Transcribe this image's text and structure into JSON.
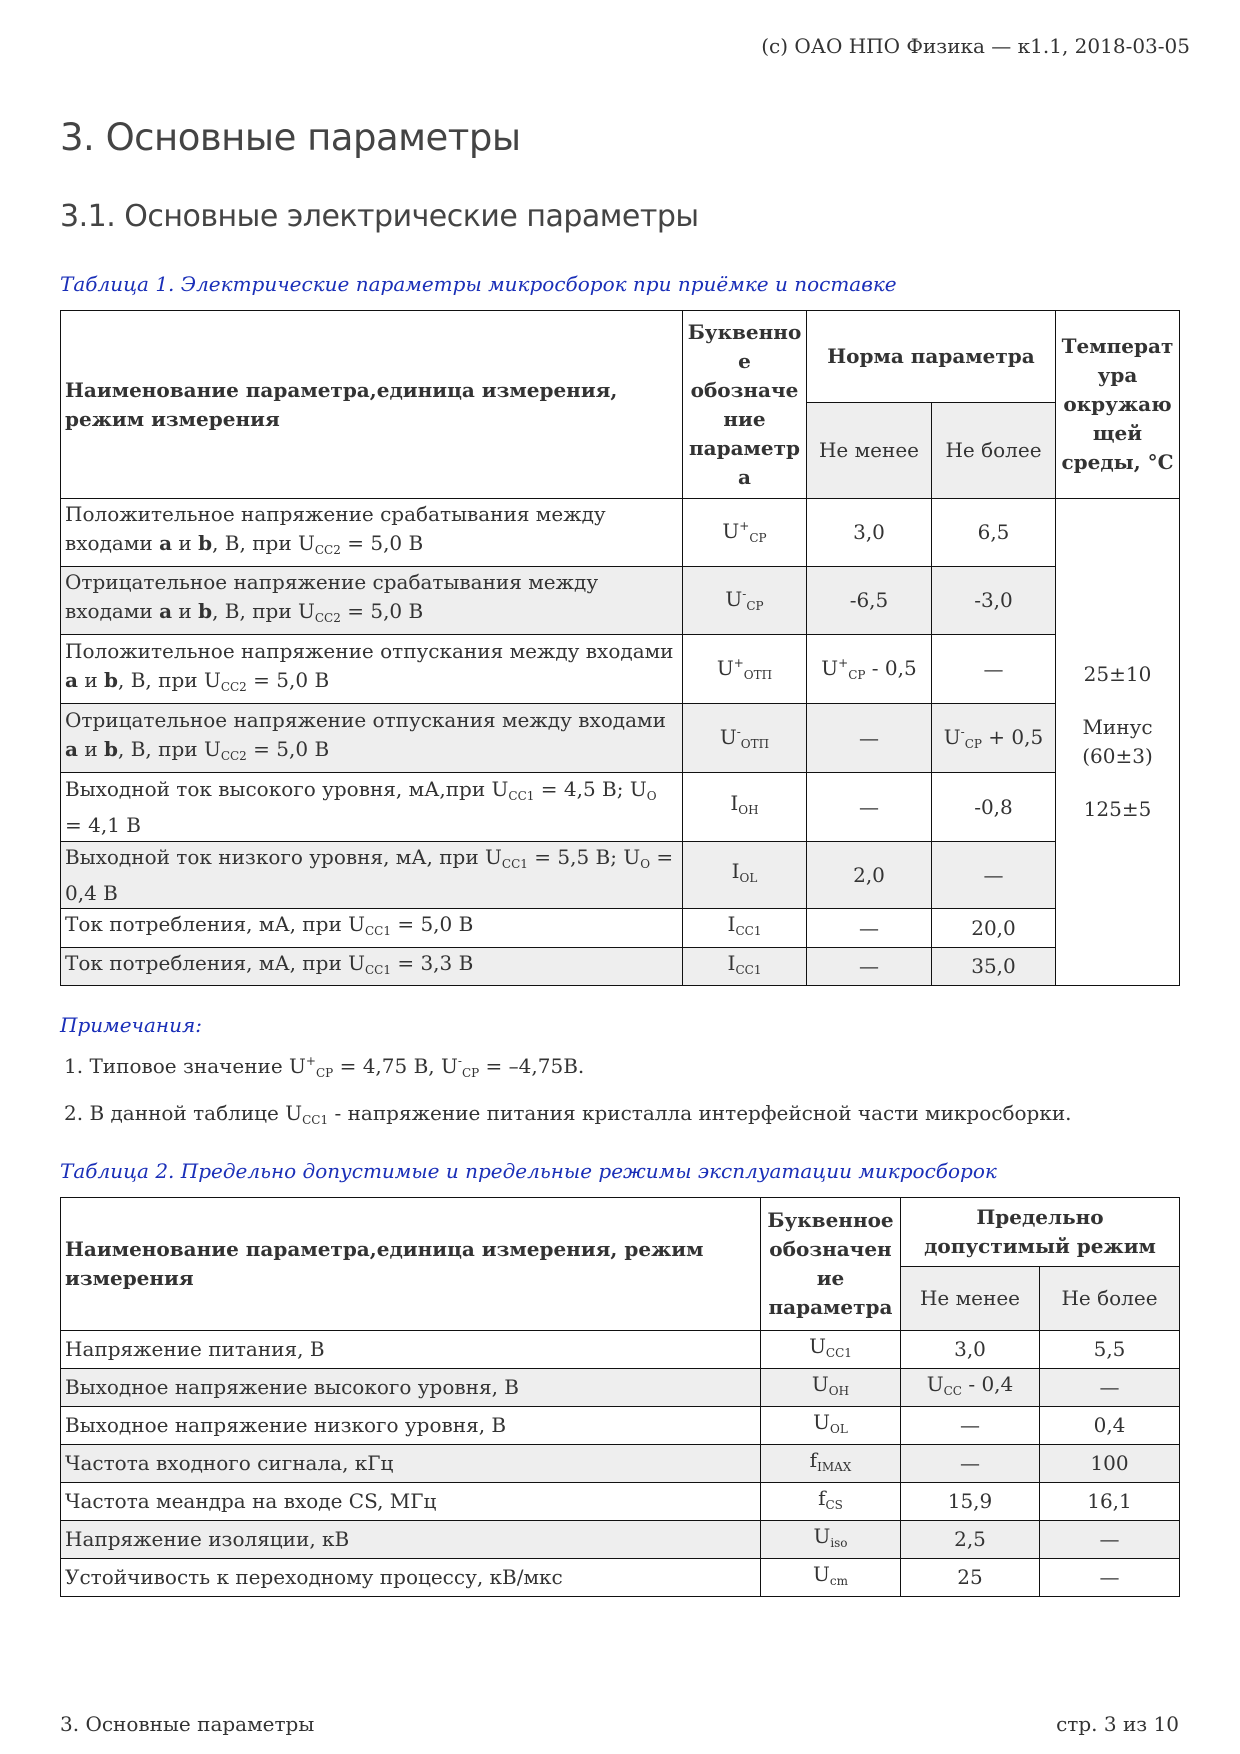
{
  "header": {
    "copyright": "(c) ОАО НПО Физика — к1.1, 2018-03-05"
  },
  "title": "3. Основные параметры",
  "subtitle": "3.1. Основные электрические параметры",
  "table1": {
    "caption": "Таблица 1. Электрические параметры микросборок при приёмке и поставке",
    "headers": {
      "name": "Наименование параметра,единица измерения, режим измерения",
      "symbol": "Буквенно е обозначе ние параметр а",
      "norm": "Норма параметра",
      "min": "Не менее",
      "max": "Не более",
      "temp": "Температ ура окружаю щей среды, °С"
    },
    "temperature": [
      "25±10",
      "Минус (60±3)",
      "125±5"
    ],
    "rows": [
      {
        "name": [
          {
            "t": "Положительное напряжение срабатывания между входами "
          },
          {
            "b": "a"
          },
          {
            "t": " и "
          },
          {
            "b": "b"
          },
          {
            "t": ", В, при U"
          },
          {
            "sub": "CC2"
          },
          {
            "t": " = 5,0 В"
          }
        ],
        "symbol": [
          {
            "t": "U"
          },
          {
            "sup": "+"
          },
          {
            "sub": "CP"
          }
        ],
        "min": [
          {
            "t": "3,0"
          }
        ],
        "max": [
          {
            "t": "6,5"
          }
        ]
      },
      {
        "name": [
          {
            "t": "Отрицательное напряжение срабатывания между входами "
          },
          {
            "b": "a"
          },
          {
            "t": " и "
          },
          {
            "b": "b"
          },
          {
            "t": ", В, при U"
          },
          {
            "sub": "CC2"
          },
          {
            "t": " = 5,0 В"
          }
        ],
        "symbol": [
          {
            "t": "U"
          },
          {
            "sup": "-"
          },
          {
            "sub": "CP"
          }
        ],
        "min": [
          {
            "t": "-6,5"
          }
        ],
        "max": [
          {
            "t": "-3,0"
          }
        ]
      },
      {
        "name": [
          {
            "t": "Положительное напряжение отпускания между входами "
          },
          {
            "b": "a"
          },
          {
            "t": " и "
          },
          {
            "b": "b"
          },
          {
            "t": ", В, при U"
          },
          {
            "sub": "CC2"
          },
          {
            "t": " = 5,0 В"
          }
        ],
        "symbol": [
          {
            "t": "U"
          },
          {
            "sup": "+"
          },
          {
            "sub": "ОТП"
          }
        ],
        "min": [
          {
            "t": "U"
          },
          {
            "sup": "+"
          },
          {
            "sub": "CP"
          },
          {
            "t": " - 0,5"
          }
        ],
        "max": [
          {
            "t": "—"
          }
        ]
      },
      {
        "name": [
          {
            "t": "Отрицательное напряжение отпускания между входами "
          },
          {
            "b": "a"
          },
          {
            "t": " и "
          },
          {
            "b": "b"
          },
          {
            "t": ", В, при U"
          },
          {
            "sub": "CC2"
          },
          {
            "t": " = 5,0 В"
          }
        ],
        "symbol": [
          {
            "t": "U"
          },
          {
            "sup": "-"
          },
          {
            "sub": "ОТП"
          }
        ],
        "min": [
          {
            "t": "—"
          }
        ],
        "max": [
          {
            "t": "U"
          },
          {
            "sup": "-"
          },
          {
            "sub": "CP"
          },
          {
            "t": " + 0,5"
          }
        ]
      },
      {
        "name": [
          {
            "t": "Выходной ток высокого уровня, мА,при U"
          },
          {
            "sub": "CC1"
          },
          {
            "t": " = 4,5 В; U"
          },
          {
            "sub": "O"
          },
          {
            "t": " = 4,1 В"
          }
        ],
        "symbol": [
          {
            "t": "I"
          },
          {
            "sub": "OH"
          }
        ],
        "min": [
          {
            "t": "—"
          }
        ],
        "max": [
          {
            "t": "-0,8"
          }
        ]
      },
      {
        "name": [
          {
            "t": "Выходной ток низкого уровня, мА, при U"
          },
          {
            "sub": "CC1"
          },
          {
            "t": " = 5,5 В; U"
          },
          {
            "sub": "O"
          },
          {
            "t": " = 0,4 В"
          }
        ],
        "symbol": [
          {
            "t": "I"
          },
          {
            "sub": "OL"
          }
        ],
        "min": [
          {
            "t": "2,0"
          }
        ],
        "max": [
          {
            "t": "—"
          }
        ]
      },
      {
        "name": [
          {
            "t": "Ток потребления, мА, при U"
          },
          {
            "sub": "CC1"
          },
          {
            "t": " = 5,0 В"
          }
        ],
        "symbol": [
          {
            "t": "I"
          },
          {
            "sub": "CC1"
          }
        ],
        "min": [
          {
            "t": "—"
          }
        ],
        "max": [
          {
            "t": "20,0"
          }
        ]
      },
      {
        "name": [
          {
            "t": "Ток потребления, мА, при U"
          },
          {
            "sub": "CC1"
          },
          {
            "t": " = 3,3 В"
          }
        ],
        "symbol": [
          {
            "t": "I"
          },
          {
            "sub": "CC1"
          }
        ],
        "min": [
          {
            "t": "—"
          }
        ],
        "max": [
          {
            "t": "35,0"
          }
        ]
      }
    ]
  },
  "notes": {
    "title": "Примечания:",
    "items": [
      [
        {
          "t": "1.  Типовое значение U"
        },
        {
          "sup": "+"
        },
        {
          "sub": "CP"
        },
        {
          "t": " = 4,75 В, U"
        },
        {
          "sup": "-"
        },
        {
          "sub": "CP"
        },
        {
          "t": " = –4,75В."
        }
      ],
      [
        {
          "t": "2.  В данной таблице U"
        },
        {
          "sub": "CC1"
        },
        {
          "t": " - напряжение питания кристалла интерфейсной части микросборки."
        }
      ]
    ]
  },
  "table2": {
    "caption": "Таблица 2. Предельно допустимые и предельные режимы эксплуатации микросборок",
    "headers": {
      "name": "Наименование параметра,единица измерения, режим измерения",
      "symbol": "Буквенное обозначен ие параметра",
      "limit": "Предельно допустимый режим",
      "min": "Не менее",
      "max": "Не более"
    },
    "rows": [
      {
        "name": [
          {
            "t": "Напряжение питания, В"
          }
        ],
        "symbol": [
          {
            "t": "U"
          },
          {
            "sub": "CC1"
          }
        ],
        "min": [
          {
            "t": "3,0"
          }
        ],
        "max": [
          {
            "t": "5,5"
          }
        ]
      },
      {
        "name": [
          {
            "t": "Выходное напряжение высокого уровня, В"
          }
        ],
        "symbol": [
          {
            "t": "U"
          },
          {
            "sub": "OH"
          }
        ],
        "min": [
          {
            "t": "U"
          },
          {
            "sub": "CC"
          },
          {
            "t": " - 0,4"
          }
        ],
        "max": [
          {
            "t": "—"
          }
        ]
      },
      {
        "name": [
          {
            "t": "Выходное напряжение низкого уровня, В"
          }
        ],
        "symbol": [
          {
            "t": "U"
          },
          {
            "sub": "OL"
          }
        ],
        "min": [
          {
            "t": "—"
          }
        ],
        "max": [
          {
            "t": "0,4"
          }
        ]
      },
      {
        "name": [
          {
            "t": "Частота входного сигнала, кГц"
          }
        ],
        "symbol": [
          {
            "t": "f"
          },
          {
            "sub": "IMAX"
          }
        ],
        "min": [
          {
            "t": "—"
          }
        ],
        "max": [
          {
            "t": "100"
          }
        ]
      },
      {
        "name": [
          {
            "t": "Частота меандра на входе CS, МГц"
          }
        ],
        "symbol": [
          {
            "t": "f"
          },
          {
            "sub": "CS"
          }
        ],
        "min": [
          {
            "t": "15,9"
          }
        ],
        "max": [
          {
            "t": "16,1"
          }
        ]
      },
      {
        "name": [
          {
            "t": "Напряжение изоляции, кВ"
          }
        ],
        "symbol": [
          {
            "t": "U"
          },
          {
            "sub": "iso"
          }
        ],
        "min": [
          {
            "t": "2,5"
          }
        ],
        "max": [
          {
            "t": "—"
          }
        ]
      },
      {
        "name": [
          {
            "t": "Устойчивость к переходному процессу, кВ/мкс"
          }
        ],
        "symbol": [
          {
            "t": "U"
          },
          {
            "sub": "cm"
          }
        ],
        "min": [
          {
            "t": "25"
          }
        ],
        "max": [
          {
            "t": "—"
          }
        ]
      }
    ]
  },
  "footer": {
    "section": "3. Основные параметры",
    "page": "стр. 3 из 10"
  }
}
